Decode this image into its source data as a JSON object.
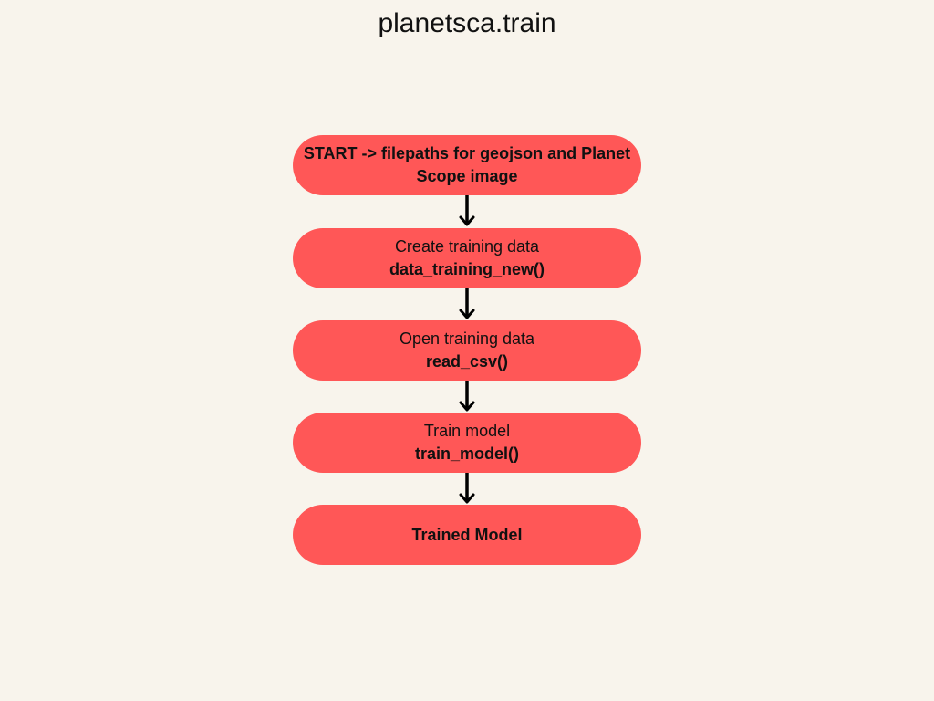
{
  "title": "planetsca.train",
  "colors": {
    "background": "#f8f4ec",
    "node_fill": "#ff5757",
    "arrow": "#000000",
    "text": "#111111"
  },
  "nodes": [
    {
      "line1": "START -> filepaths for geojson and Planet Scope image",
      "line2": ""
    },
    {
      "line1": "Create training data",
      "line2": "data_training_new()"
    },
    {
      "line1": "Open training data",
      "line2": "read_csv()"
    },
    {
      "line1": "Train model",
      "line2": "train_model()"
    },
    {
      "line1": "",
      "line2": "Trained Model"
    }
  ]
}
